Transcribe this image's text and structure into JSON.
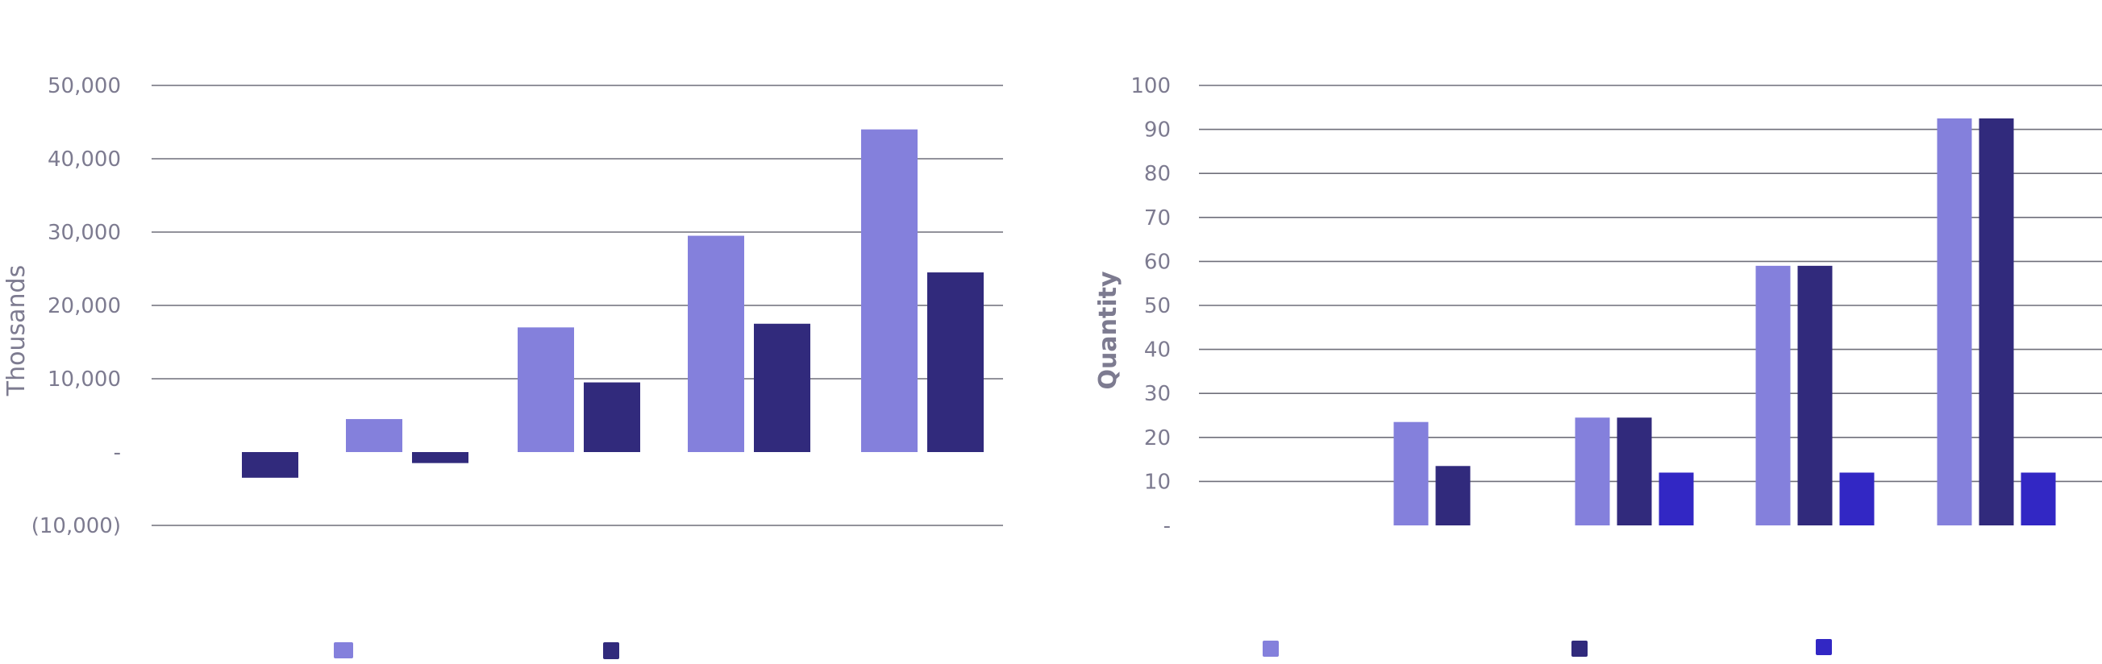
{
  "chart_data": [
    {
      "type": "bar",
      "title": "",
      "xlabel": "",
      "ylabel": "Thousands",
      "ylim": [
        -10000,
        50000
      ],
      "yticks": [
        -10000,
        0,
        10000,
        20000,
        30000,
        40000,
        50000
      ],
      "ytick_labels": [
        "(10,000)",
        "-",
        "10,000",
        "20,000",
        "30,000",
        "40,000",
        "50,000"
      ],
      "grid": true,
      "legend_position": "bottom",
      "categories": [
        "",
        "",
        "",
        "",
        ""
      ],
      "series": [
        {
          "color": "#8480dc",
          "values": [
            0,
            4500,
            17000,
            29500,
            44000
          ]
        },
        {
          "color": "#312a7c",
          "values": [
            -3500,
            -1500,
            9500,
            17500,
            24500
          ]
        }
      ]
    },
    {
      "type": "bar",
      "title": "",
      "xlabel": "",
      "ylabel": "Quantity",
      "ylim": [
        0,
        100
      ],
      "yticks": [
        0,
        10,
        20,
        30,
        40,
        50,
        60,
        70,
        80,
        90,
        100
      ],
      "ytick_labels": [
        "-",
        "10",
        "20",
        "30",
        "40",
        "50",
        "60",
        "70",
        "80",
        "90",
        "100"
      ],
      "grid": true,
      "legend_position": "bottom",
      "categories": [
        "",
        "",
        "",
        "",
        ""
      ],
      "series": [
        {
          "color": "#8480dc",
          "values": [
            0,
            23.5,
            24.5,
            59,
            92.5
          ]
        },
        {
          "color": "#312a7c",
          "values": [
            0,
            13.5,
            24.5,
            59,
            92.5
          ]
        },
        {
          "color": "#3227c4",
          "values": [
            0,
            0,
            12,
            12,
            12
          ]
        }
      ]
    }
  ]
}
